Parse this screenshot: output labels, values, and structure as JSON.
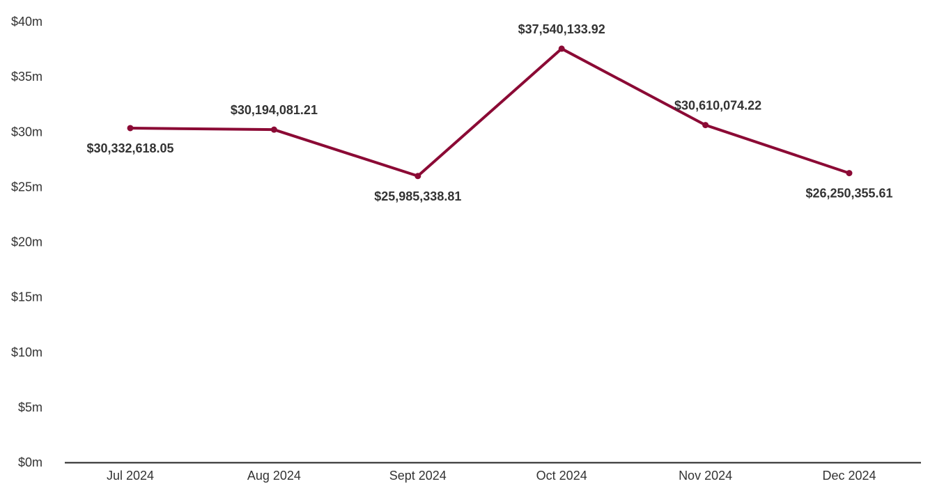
{
  "chart_data": {
    "type": "line",
    "title": "",
    "xlabel": "",
    "ylabel": "",
    "categories": [
      "Jul 2024",
      "Aug 2024",
      "Sept 2024",
      "Oct 2024",
      "Nov 2024",
      "Dec 2024"
    ],
    "series": [
      {
        "values": [
          30332618.05,
          30194081.21,
          25985338.81,
          37540133.92,
          30610074.22,
          26250355.61
        ],
        "color": "#8b0a35"
      }
    ],
    "data_labels": [
      "$30,332,618.05",
      "$30,194,081.21",
      "$25,985,338.81",
      "$37,540,133.92",
      "$30,610,074.22",
      "$26,250,355.61"
    ],
    "y_ticks": [
      {
        "value": 0,
        "label": "$0m"
      },
      {
        "value": 5000000,
        "label": "$5m"
      },
      {
        "value": 10000000,
        "label": "$10m"
      },
      {
        "value": 15000000,
        "label": "$15m"
      },
      {
        "value": 20000000,
        "label": "$20m"
      },
      {
        "value": 25000000,
        "label": "$25m"
      },
      {
        "value": 30000000,
        "label": "$30m"
      },
      {
        "value": 35000000,
        "label": "$35m"
      },
      {
        "value": 40000000,
        "label": "$40m"
      }
    ],
    "ylim": [
      0,
      40000000
    ],
    "grid": false,
    "legend": "none",
    "axis_color": "#222222"
  }
}
